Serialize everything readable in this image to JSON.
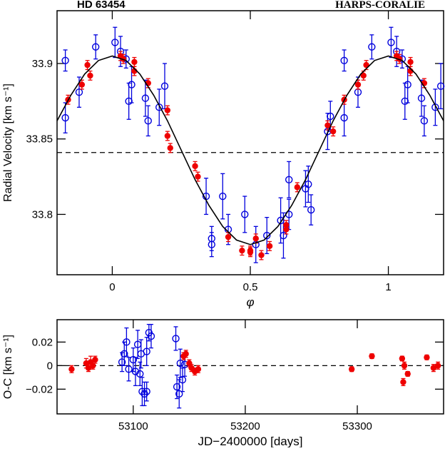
{
  "chart_data": [
    {
      "type": "scatter",
      "annotations": [
        "HD 63454",
        "HARPS-CORALIE"
      ],
      "xlabel": "φ",
      "ylabel": "Radial Velocity [km s⁻¹]",
      "xlim": [
        -0.2,
        1.2
      ],
      "ylim": [
        33.76,
        33.935
      ],
      "xticks": [
        0,
        0.5,
        1
      ],
      "yticks": [
        33.8,
        33.85,
        33.9
      ],
      "hline": 33.841,
      "hline_style": "dashed",
      "series": [
        {
          "color": "#0000dd",
          "marker": "open",
          "x": [
            -0.17,
            -0.17,
            -0.12,
            -0.06,
            0.01,
            0.03,
            0.05,
            0.06,
            0.07,
            0.12,
            0.13,
            0.17,
            0.19,
            0.34,
            0.36,
            0.36,
            0.4,
            0.42,
            0.48,
            0.52,
            0.56,
            0.61,
            0.62,
            0.64,
            0.64,
            0.7,
            0.71,
            0.72,
            0.78,
            0.79,
            0.84,
            0.84,
            0.89,
            0.94,
            1.01,
            1.03,
            1.05,
            1.06,
            1.07,
            1.12,
            1.13,
            1.17,
            1.19
          ],
          "values": [
            33.902,
            33.864,
            33.881,
            33.911,
            33.914,
            33.908,
            33.903,
            33.875,
            33.886,
            33.877,
            33.862,
            33.871,
            33.885,
            33.812,
            33.78,
            33.784,
            33.812,
            33.79,
            33.8,
            33.78,
            33.786,
            33.796,
            33.786,
            33.823,
            33.8,
            33.817,
            33.82,
            33.803,
            33.855,
            33.865,
            33.864,
            33.902,
            33.881,
            33.911,
            33.914,
            33.908,
            33.903,
            33.875,
            33.886,
            33.877,
            33.862,
            33.871,
            33.885
          ],
          "errors": [
            0.007,
            0.01,
            0.01,
            0.008,
            0.01,
            0.01,
            0.006,
            0.012,
            0.012,
            0.012,
            0.01,
            0.012,
            0.015,
            0.012,
            0.008,
            0.008,
            0.015,
            0.01,
            0.012,
            0.012,
            0.012,
            0.015,
            0.015,
            0.012,
            0.01,
            0.012,
            0.012,
            0.01,
            0.012,
            0.01,
            0.012,
            0.007,
            0.01,
            0.008,
            0.01,
            0.01,
            0.006,
            0.012,
            0.012,
            0.012,
            0.01,
            0.012,
            0.015
          ]
        },
        {
          "color": "#ee0000",
          "marker": "filled",
          "x": [
            -0.16,
            -0.11,
            -0.09,
            -0.08,
            0.03,
            0.04,
            0.08,
            0.08,
            0.13,
            0.2,
            0.2,
            0.21,
            0.3,
            0.31,
            0.42,
            0.47,
            0.5,
            0.5,
            0.52,
            0.54,
            0.57,
            0.63,
            0.63,
            0.67,
            0.78,
            0.8,
            0.84,
            0.89,
            0.91,
            0.92,
            1.03,
            1.04,
            1.08,
            1.08,
            1.13
          ],
          "values": [
            33.876,
            33.886,
            33.899,
            33.892,
            33.905,
            33.903,
            33.901,
            33.895,
            33.887,
            33.869,
            33.852,
            33.844,
            33.832,
            33.825,
            33.785,
            33.776,
            33.775,
            33.776,
            33.784,
            33.773,
            33.779,
            33.79,
            33.793,
            33.818,
            33.859,
            33.855,
            33.876,
            33.886,
            33.892,
            33.899,
            33.905,
            33.903,
            33.901,
            33.895,
            33.887
          ],
          "errors": [
            0.003,
            0.003,
            0.003,
            0.003,
            0.003,
            0.003,
            0.003,
            0.003,
            0.003,
            0.003,
            0.003,
            0.003,
            0.003,
            0.003,
            0.003,
            0.003,
            0.003,
            0.003,
            0.003,
            0.003,
            0.003,
            0.003,
            0.003,
            0.003,
            0.003,
            0.003,
            0.003,
            0.003,
            0.003,
            0.003,
            0.003,
            0.003,
            0.003,
            0.003,
            0.003
          ]
        },
        {
          "type": "line",
          "color": "#000000",
          "x": [
            -0.2,
            -0.15,
            -0.1,
            -0.05,
            0,
            0.05,
            0.1,
            0.15,
            0.2,
            0.25,
            0.3,
            0.35,
            0.4,
            0.45,
            0.5,
            0.55,
            0.6,
            0.65,
            0.7,
            0.75,
            0.8,
            0.85,
            0.9,
            0.95,
            1,
            1.05,
            1.1,
            1.15,
            1.2
          ],
          "values": [
            33.862,
            33.879,
            33.893,
            33.902,
            33.905,
            33.902,
            33.893,
            33.879,
            33.862,
            33.8425,
            33.823,
            33.806,
            33.792,
            33.783,
            33.78,
            33.783,
            33.792,
            33.806,
            33.823,
            33.8425,
            33.862,
            33.879,
            33.893,
            33.902,
            33.905,
            33.902,
            33.893,
            33.879,
            33.862
          ]
        }
      ]
    },
    {
      "type": "scatter",
      "xlabel": "JD−2400000 [days]",
      "ylabel": "O-C [km s⁻¹]",
      "xlim": [
        53032,
        53377
      ],
      "ylim": [
        -0.041,
        0.039
      ],
      "xticks": [
        53100,
        53200,
        53300
      ],
      "yticks": [
        {
          "value": -0.02,
          "label": "−0.02"
        },
        0,
        0.02
      ],
      "hline": 0,
      "hline_style": "dashed",
      "series": [
        {
          "color": "#0000dd",
          "marker": "open",
          "x": [
            53090,
            53092,
            53094,
            53096,
            53100,
            53102,
            53104,
            53106,
            53107,
            53108,
            53110,
            53112,
            53114,
            53116,
            53112,
            53138,
            53139,
            53141,
            53142,
            53144,
            53146
          ],
          "values": [
            0.003,
            0.01,
            0.02,
            -0.003,
            0.005,
            -0.005,
            0.018,
            -0.007,
            0.01,
            -0.022,
            -0.024,
            0.012,
            0.028,
            0.025,
            -0.022,
            0.023,
            -0.018,
            -0.024,
            0.002,
            -0.012,
            0.001
          ],
          "errors": [
            0.008,
            0.01,
            0.012,
            0.01,
            0.01,
            0.012,
            0.012,
            0.01,
            0.012,
            0.012,
            0.01,
            0.012,
            0.007,
            0.01,
            0.008,
            0.01,
            0.01,
            0.012,
            0.012,
            0.01,
            0.01
          ]
        },
        {
          "color": "#ee0000",
          "marker": "filled",
          "x": [
            53045,
            53058,
            53060,
            53062,
            53064,
            53066,
            53145,
            53147,
            53150,
            53152,
            53155,
            53158,
            53295,
            53313,
            53340,
            53341,
            53342,
            53345,
            53362,
            53368,
            53372
          ],
          "values": [
            -0.003,
            0.002,
            -0.002,
            0.003,
            0,
            0.005,
            0.008,
            0.01,
            0.002,
            -0.002,
            -0.005,
            -0.003,
            -0.003,
            0.008,
            0.006,
            -0.014,
            0,
            -0.007,
            0.007,
            -0.002,
            0
          ],
          "errors": [
            0.003,
            0.004,
            0.003,
            0.005,
            0.003,
            0.003,
            0.003,
            0.003,
            0.003,
            0.003,
            0.003,
            0.003,
            0.002,
            0.002,
            0.002,
            0.003,
            0.003,
            0.002,
            0.002,
            0.003,
            0.003
          ]
        }
      ]
    }
  ]
}
